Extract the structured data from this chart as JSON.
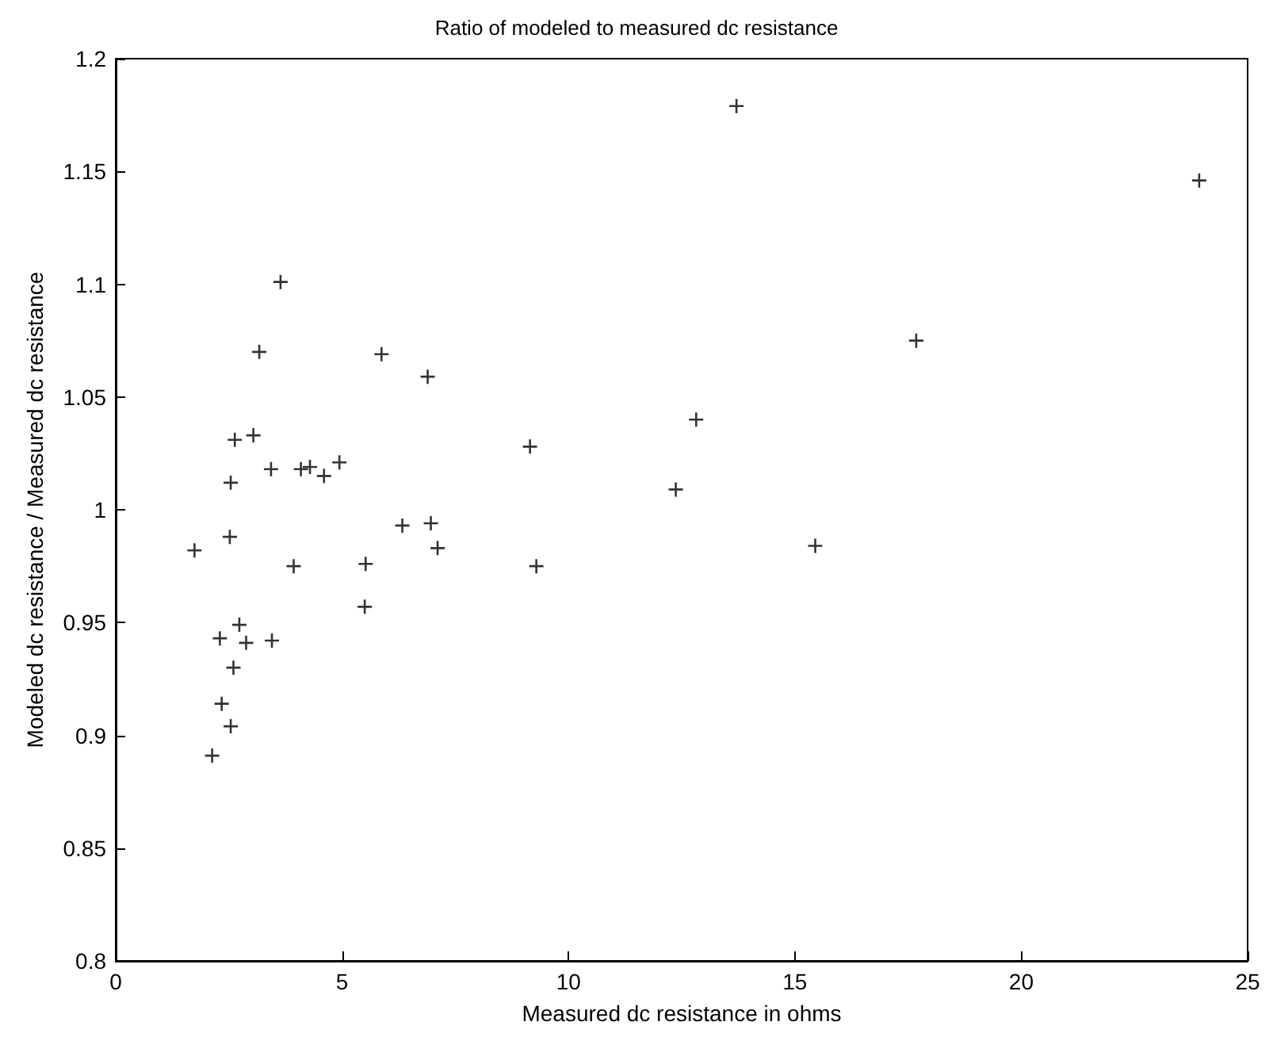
{
  "chart_data": {
    "type": "scatter",
    "title": "Ratio of modeled to measured dc resistance",
    "xlabel": "Measured dc resistance in ohms",
    "ylabel": "Modeled dc resistance / Measured dc resistance",
    "x": [
      3.64,
      3.17,
      5.87,
      6.89,
      2.63,
      3.04,
      2.54,
      3.43,
      4.09,
      4.29,
      4.6,
      4.94,
      2.52,
      1.74,
      6.33,
      6.96,
      7.11,
      3.93,
      5.52,
      5.5,
      2.73,
      2.3,
      2.88,
      3.45,
      2.6,
      2.34,
      2.54,
      2.13,
      13.71,
      23.93,
      17.68,
      12.82,
      9.15,
      12.37,
      15.45,
      9.29
    ],
    "series": [
      {
        "color": "#000000",
        "values": [
          1.101,
          1.07,
          1.069,
          1.059,
          1.031,
          1.033,
          1.012,
          1.018,
          1.018,
          1.019,
          1.015,
          1.021,
          0.988,
          0.982,
          0.993,
          0.994,
          0.983,
          0.975,
          0.976,
          0.957,
          0.949,
          0.943,
          0.941,
          0.942,
          0.93,
          0.914,
          0.904,
          0.891,
          1.179,
          1.146,
          1.075,
          1.04,
          1.028,
          1.009,
          0.984,
          0.975
        ]
      }
    ],
    "xlim": [
      0,
      25
    ],
    "xticks": [
      0,
      5,
      10,
      15,
      20,
      25
    ],
    "ylim": [
      0.8,
      1.2
    ],
    "yticks": [
      0.8,
      0.85,
      0.9,
      0.95,
      1,
      1.05,
      1.1,
      1.15,
      1.2
    ],
    "grid": false,
    "marker": "cross"
  }
}
